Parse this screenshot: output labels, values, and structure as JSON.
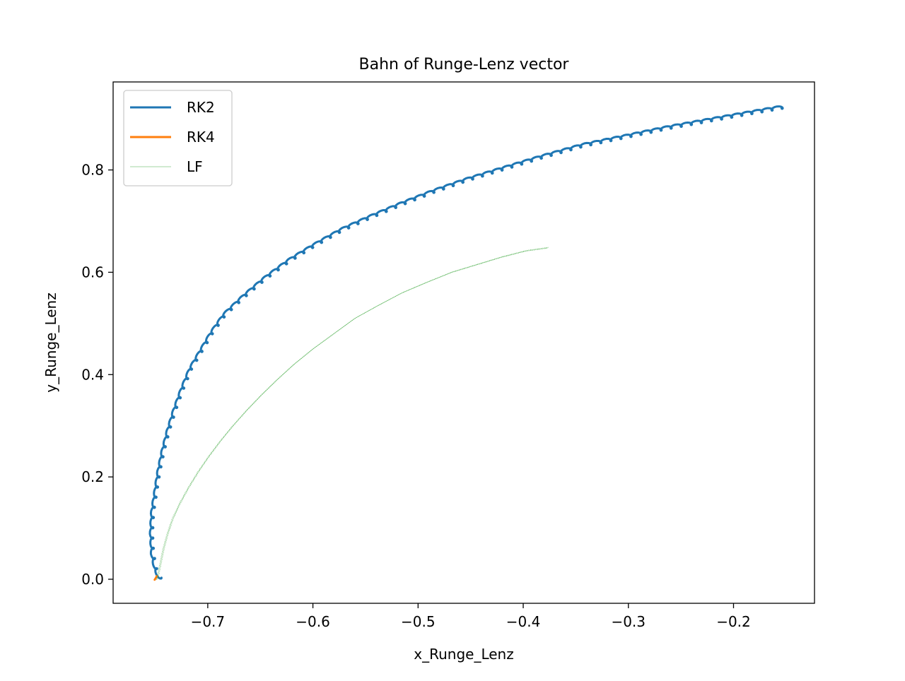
{
  "chart_data": {
    "type": "line",
    "title": "Bahn of Runge-Lenz vector",
    "xlabel": "x_Runge_Lenz",
    "ylabel": "y_Runge_Lenz",
    "xlim": [
      -0.79,
      -0.123
    ],
    "ylim": [
      -0.047,
      0.972
    ],
    "xticks": [
      -0.7,
      -0.6,
      -0.5,
      -0.4,
      -0.3,
      -0.2
    ],
    "xtick_labels": [
      "−0.7",
      "−0.6",
      "−0.5",
      "−0.4",
      "−0.3",
      "−0.2"
    ],
    "yticks": [
      0.0,
      0.2,
      0.4,
      0.6,
      0.8
    ],
    "ytick_labels": [
      "0.0",
      "0.2",
      "0.4",
      "0.6",
      "0.8"
    ],
    "grid": false,
    "legend": "upper left",
    "series": [
      {
        "name": "RK2",
        "color": "#1f77b4",
        "linewidth": "thick",
        "style": "small loops along the path",
        "x": [
          -0.744,
          -0.748,
          -0.751,
          -0.752,
          -0.751,
          -0.748,
          -0.745,
          -0.741,
          -0.736,
          -0.73,
          -0.723,
          -0.715,
          -0.705,
          -0.695,
          -0.683,
          -0.665,
          -0.645,
          -0.622,
          -0.598,
          -0.572,
          -0.545,
          -0.516,
          -0.485,
          -0.453,
          -0.418,
          -0.381,
          -0.343,
          -0.303,
          -0.261,
          -0.218,
          -0.18,
          -0.152
        ],
        "y": [
          0.003,
          0.02,
          0.05,
          0.09,
          0.13,
          0.17,
          0.21,
          0.25,
          0.29,
          0.33,
          0.37,
          0.41,
          0.445,
          0.48,
          0.515,
          0.55,
          0.585,
          0.62,
          0.65,
          0.68,
          0.705,
          0.73,
          0.755,
          0.778,
          0.8,
          0.823,
          0.845,
          0.862,
          0.88,
          0.896,
          0.91,
          0.92
        ]
      },
      {
        "name": "RK4",
        "color": "#ff7f0e",
        "linewidth": "thick",
        "x": [
          -0.7505,
          -0.7495,
          -0.7485
        ],
        "y": [
          -0.001,
          0.002,
          0.006
        ]
      },
      {
        "name": "LF",
        "color": "#2ca02c",
        "linewidth": "thin",
        "style": "faint dotted band",
        "x": [
          -0.748,
          -0.745,
          -0.742,
          -0.738,
          -0.733,
          -0.726,
          -0.718,
          -0.709,
          -0.699,
          -0.688,
          -0.676,
          -0.663,
          -0.649,
          -0.634,
          -0.618,
          -0.6,
          -0.58,
          -0.56,
          -0.538,
          -0.515,
          -0.492,
          -0.468,
          -0.444,
          -0.42,
          -0.397,
          -0.376
        ],
        "y": [
          0.0,
          0.03,
          0.06,
          0.09,
          0.12,
          0.15,
          0.18,
          0.21,
          0.24,
          0.27,
          0.3,
          0.33,
          0.36,
          0.39,
          0.42,
          0.45,
          0.48,
          0.51,
          0.535,
          0.56,
          0.58,
          0.6,
          0.615,
          0.63,
          0.642,
          0.648
        ]
      }
    ]
  }
}
